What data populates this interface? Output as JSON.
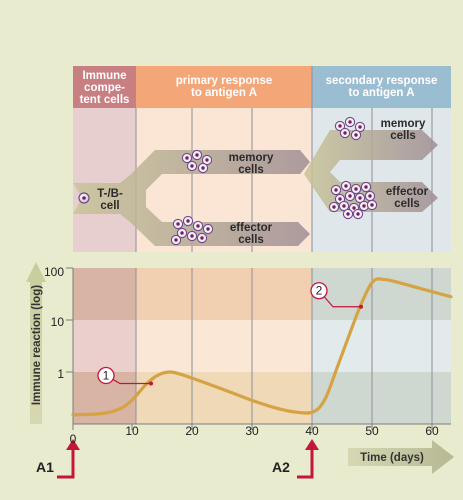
{
  "phases": [
    {
      "label_line1": "Immune",
      "label_line2": "compe-",
      "label_line3": "tent cells"
    },
    {
      "label_line1": "primary response",
      "label_line2": "to antigen A"
    },
    {
      "label_line1": "secondary response",
      "label_line2": "to antigen A"
    }
  ],
  "cells": {
    "tb": {
      "line1": "T-/B-",
      "line2": "cell"
    },
    "memory_primary": {
      "line1": "memory",
      "line2": "cells"
    },
    "effector_primary": {
      "line1": "effector",
      "line2": "cells"
    },
    "memory_secondary": {
      "line1": "memory",
      "line2": "cells"
    },
    "effector_secondary": {
      "line1": "effector",
      "line2": "cells"
    }
  },
  "chart": {
    "ylabel": "Immune reaction (log)",
    "xlabel": "Time (days)",
    "y_ticks": [
      "100",
      "10",
      "1"
    ],
    "x_ticks": [
      "0",
      "10",
      "20",
      "30",
      "40",
      "50",
      "60"
    ],
    "markers": [
      "1",
      "2"
    ],
    "antigen_labels": [
      "A1",
      "A2"
    ]
  },
  "colors": {
    "phase1": "#c87f82",
    "phase2": "#f3a779",
    "phase3": "#9bbdd1",
    "curve": "#d5a244",
    "arrow_red": "#c3163a"
  },
  "chart_data": {
    "type": "line",
    "xlabel": "Time (days)",
    "ylabel": "Immune reaction (log)",
    "x_range": [
      0,
      63
    ],
    "y_scale": "log",
    "y_range": [
      0.12,
      100
    ],
    "series": [
      {
        "x": [
          0,
          5,
          8,
          10,
          12,
          14,
          16,
          18,
          22,
          26,
          30,
          34,
          37,
          40,
          42,
          44,
          46,
          48,
          50,
          52,
          55,
          58,
          63
        ],
        "y": [
          0.15,
          0.16,
          0.2,
          0.3,
          0.55,
          0.85,
          1.0,
          0.9,
          0.62,
          0.42,
          0.28,
          0.2,
          0.17,
          0.17,
          0.3,
          1.2,
          5,
          20,
          55,
          60,
          50,
          40,
          28
        ]
      }
    ],
    "annotations": [
      {
        "label": "1",
        "x": 13,
        "y": 0.6
      },
      {
        "label": "2",
        "x": 48,
        "y": 18
      }
    ]
  }
}
